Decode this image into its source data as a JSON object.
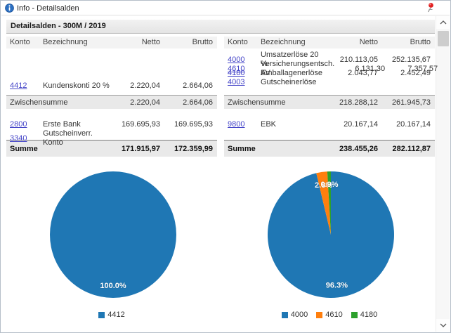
{
  "window": {
    "title": "Info - Detailsalden"
  },
  "panel": {
    "title": "Detailsalden - 300M / 2019"
  },
  "columns": {
    "konto": "Konto",
    "bezeichnung": "Bezeichnung",
    "netto": "Netto",
    "brutto": "Brutto"
  },
  "left_table": {
    "group1": [
      {
        "konto": "4412",
        "bezeichnung": "Kundenskonti 20 %",
        "netto": "2.220,04",
        "brutto": "2.664,06"
      }
    ],
    "zwischensumme": {
      "label": "Zwischensumme",
      "netto": "2.220,04",
      "brutto": "2.664,06"
    },
    "group2": [
      {
        "konto": "2800",
        "bezeichnung": "Erste Bank",
        "netto": "169.695,93",
        "brutto": "169.695,93"
      },
      {
        "konto": "3340",
        "bezeichnung": "Gutscheinverr. Konto",
        "netto": "",
        "brutto": ""
      }
    ],
    "summe": {
      "label": "Summe",
      "netto": "171.915,97",
      "brutto": "172.359,99"
    }
  },
  "right_table": {
    "group1": [
      {
        "konto": "4000",
        "bezeichnung": "Umsatzerlöse 20 %",
        "netto": "210.113,05",
        "brutto": "252.135,67"
      },
      {
        "konto": "4610",
        "bezeichnung": "Versicherungsentsch. AV",
        "netto": "6.131,30",
        "brutto": "7.357,57"
      },
      {
        "konto": "4180",
        "bezeichnung": "Emballagenerlöse",
        "netto": "2.043,77",
        "brutto": "2.452,49"
      },
      {
        "konto": "4003",
        "bezeichnung": "Gutscheinerlöse",
        "netto": "",
        "brutto": ""
      }
    ],
    "zwischensumme": {
      "label": "Zwischensumme",
      "netto": "218.288,12",
      "brutto": "261.945,73"
    },
    "group2": [
      {
        "konto": "9800",
        "bezeichnung": "EBK",
        "netto": "20.167,14",
        "brutto": "20.167,14"
      }
    ],
    "summe": {
      "label": "Summe",
      "netto": "238.455,26",
      "brutto": "282.112,87"
    }
  },
  "chart_data": [
    {
      "type": "pie",
      "labels": [
        "4412"
      ],
      "values": [
        100.0
      ],
      "pct_labels": [
        "100.0%"
      ],
      "colors": [
        "#1f77b4"
      ],
      "legend": [
        "4412"
      ],
      "start_angle": "top",
      "direction": "clockwise",
      "legend_position": "bottom"
    },
    {
      "type": "pie",
      "labels": [
        "4000",
        "4610",
        "4180"
      ],
      "values": [
        96.3,
        2.8,
        0.9
      ],
      "pct_labels": [
        "96.3%",
        "2.8%",
        "0.9%"
      ],
      "colors": [
        "#1f77b4",
        "#ff7f0e",
        "#2ca02c"
      ],
      "legend": [
        "4000",
        "4610",
        "4180"
      ],
      "start_angle": "top",
      "direction": "clockwise",
      "legend_position": "bottom"
    }
  ]
}
